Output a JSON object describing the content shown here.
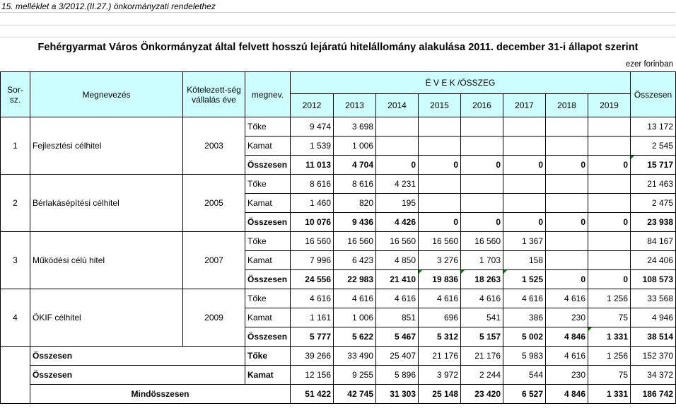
{
  "header_note": "15. melléklet a 3/2012.(II.27.) önkormányzati rendelethez",
  "title": "Fehérgyarmat Város Önkormányzat által felvett hosszú lejáratú hitelállomány alakulása 2011. december 31-i állapot szerint",
  "unit": "ezer forinban",
  "columns": {
    "sorsz": "Sor-sz.",
    "megnevezes": "Megnevezés",
    "kotelezettseg": "Kötelezett-ség vállalás éve",
    "megnev": "megnev.",
    "evek": "É V E K /ÖSSZEG",
    "years": [
      "2012",
      "2013",
      "2014",
      "2015",
      "2016",
      "2017",
      "2018",
      "2019"
    ],
    "osszesen": "Összesen"
  },
  "loans": [
    {
      "no": "1",
      "name": "Fejlesztési célhitel",
      "year": "2003",
      "rows": [
        {
          "label": "Tőke",
          "values": [
            "9 474",
            "3 698",
            "",
            "",
            "",
            "",
            "",
            ""
          ],
          "total": "13 172"
        },
        {
          "label": "Kamat",
          "values": [
            "1 539",
            "1 006",
            "",
            "",
            "",
            "",
            "",
            ""
          ],
          "total": "2 545"
        },
        {
          "label": "Összesen",
          "values": [
            "11 013",
            "4 704",
            "0",
            "0",
            "0",
            "0",
            "0",
            "0"
          ],
          "total": "15 717"
        }
      ]
    },
    {
      "no": "2",
      "name": "Bérlakásépítési célhitel",
      "year": "2005",
      "rows": [
        {
          "label": "Tőke",
          "values": [
            "8 616",
            "8 616",
            "4 231",
            "",
            "",
            "",
            "",
            ""
          ],
          "total": "21 463"
        },
        {
          "label": "Kamat",
          "values": [
            "1 460",
            "820",
            "195",
            "",
            "",
            "",
            "",
            ""
          ],
          "total": "2 475"
        },
        {
          "label": "Összesen",
          "values": [
            "10 076",
            "9 436",
            "4 426",
            "0",
            "0",
            "0",
            "0",
            "0"
          ],
          "total": "23 938"
        }
      ]
    },
    {
      "no": "3",
      "name": "Működési célú hitel",
      "year": "2007",
      "rows": [
        {
          "label": "Tőke",
          "values": [
            "16 560",
            "16 560",
            "16 560",
            "16 560",
            "16 560",
            "1 367",
            "",
            ""
          ],
          "total": "84 167"
        },
        {
          "label": "Kamat",
          "values": [
            "7 996",
            "6 423",
            "4 850",
            "3 276",
            "1 703",
            "158",
            "",
            ""
          ],
          "total": "24 406"
        },
        {
          "label": "Összesen",
          "values": [
            "24 556",
            "22 983",
            "21 410",
            "19 836",
            "18 263",
            "1 525",
            "0",
            "0"
          ],
          "total": "108 573"
        }
      ]
    },
    {
      "no": "4",
      "name": "ÖKIF célhitel",
      "year": "2009",
      "rows": [
        {
          "label": "Tőke",
          "values": [
            "4 616",
            "4 616",
            "4 616",
            "4 616",
            "4 616",
            "4 616",
            "4 616",
            "1 256"
          ],
          "total": "33 568"
        },
        {
          "label": "Kamat",
          "values": [
            "1 161",
            "1 006",
            "851",
            "696",
            "541",
            "386",
            "230",
            "75"
          ],
          "total": "4 946"
        },
        {
          "label": "Összesen",
          "values": [
            "5 777",
            "5 622",
            "5 467",
            "5 312",
            "5 157",
            "5 002",
            "4 846",
            "1 331"
          ],
          "total": "38 514"
        }
      ]
    }
  ],
  "summary": [
    {
      "name": "Összesen",
      "label": "Tőke",
      "values": [
        "39 266",
        "33 490",
        "25 407",
        "21 176",
        "21 176",
        "5 983",
        "4 616",
        "1 256"
      ],
      "total": "152 370"
    },
    {
      "name": "Összesen",
      "label": "Kamat",
      "values": [
        "12 156",
        "9 255",
        "5 896",
        "3 972",
        "2 244",
        "544",
        "230",
        "75"
      ],
      "total": "34 372"
    }
  ],
  "grand_total": {
    "label": "Mindösszesen",
    "values": [
      "51 422",
      "42 745",
      "31 303",
      "25 148",
      "23 420",
      "6 527",
      "4 846",
      "1 331"
    ],
    "total": "186 742"
  },
  "colors": {
    "header_bg": "#cdfeff",
    "comment_marker": "#008000"
  }
}
